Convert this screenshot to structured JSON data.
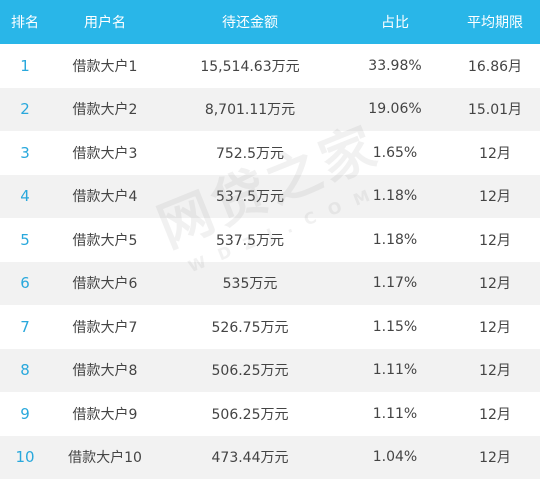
{
  "columns": [
    "排名",
    "用户名",
    "待还金额",
    "占比",
    "平均期限"
  ],
  "rows": [
    {
      "rank": "1",
      "user": "借款大户1",
      "amount": "15,514.63万元",
      "share": "33.98%",
      "term": "16.86月"
    },
    {
      "rank": "2",
      "user": "借款大户2",
      "amount": "8,701.11万元",
      "share": "19.06%",
      "term": "15.01月"
    },
    {
      "rank": "3",
      "user": "借款大户3",
      "amount": "752.5万元",
      "share": "1.65%",
      "term": "12月"
    },
    {
      "rank": "4",
      "user": "借款大户4",
      "amount": "537.5万元",
      "share": "1.18%",
      "term": "12月"
    },
    {
      "rank": "5",
      "user": "借款大户5",
      "amount": "537.5万元",
      "share": "1.18%",
      "term": "12月"
    },
    {
      "rank": "6",
      "user": "借款大户6",
      "amount": "535万元",
      "share": "1.17%",
      "term": "12月"
    },
    {
      "rank": "7",
      "user": "借款大户7",
      "amount": "526.75万元",
      "share": "1.15%",
      "term": "12月"
    },
    {
      "rank": "8",
      "user": "借款大户8",
      "amount": "506.25万元",
      "share": "1.11%",
      "term": "12月"
    },
    {
      "rank": "9",
      "user": "借款大户9",
      "amount": "506.25万元",
      "share": "1.11%",
      "term": "12月"
    },
    {
      "rank": "10",
      "user": "借款大户10",
      "amount": "473.44万元",
      "share": "1.04%",
      "term": "12月"
    }
  ],
  "watermark": {
    "main": "网贷之家",
    "sub": "WDZJ.COM"
  },
  "colors": {
    "header_bg": "#29b6e8",
    "header_text": "#ffffff",
    "rank_text": "#29a8dc",
    "stripe": "#f2f2f2"
  }
}
